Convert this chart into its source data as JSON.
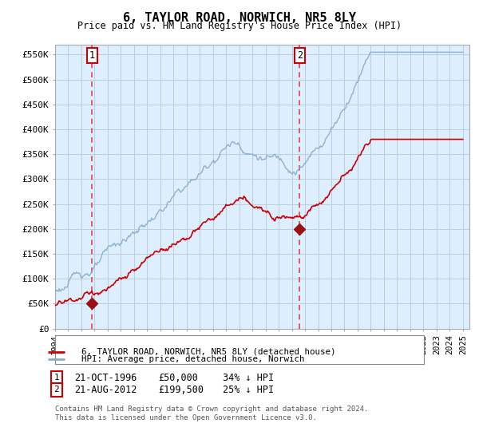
{
  "title": "6, TAYLOR ROAD, NORWICH, NR5 8LY",
  "subtitle": "Price paid vs. HM Land Registry's House Price Index (HPI)",
  "ylim": [
    0,
    570000
  ],
  "yticks": [
    0,
    50000,
    100000,
    150000,
    200000,
    250000,
    300000,
    350000,
    400000,
    450000,
    500000,
    550000
  ],
  "ytick_labels": [
    "£0",
    "£50K",
    "£100K",
    "£150K",
    "£200K",
    "£250K",
    "£300K",
    "£350K",
    "£400K",
    "£450K",
    "£500K",
    "£550K"
  ],
  "xlim_start": 1994.0,
  "xlim_end": 2025.5,
  "sale1_x": 1996.8,
  "sale1_y": 50000,
  "sale2_x": 2012.6,
  "sale2_y": 199500,
  "sale_color": "#cc0000",
  "hpi_color": "#88aacc",
  "vline_color": "#dd4444",
  "marker_color": "#991111",
  "bg_color": "#ddeeff",
  "grid_color": "#bbccdd",
  "legend_entry1": "6, TAYLOR ROAD, NORWICH, NR5 8LY (detached house)",
  "legend_entry2": "HPI: Average price, detached house, Norwich",
  "annotation1_date": "21-OCT-1996",
  "annotation1_price": "£50,000",
  "annotation1_hpi": "34% ↓ HPI",
  "annotation2_date": "21-AUG-2012",
  "annotation2_price": "£199,500",
  "annotation2_hpi": "25% ↓ HPI",
  "footer": "Contains HM Land Registry data © Crown copyright and database right 2024.\nThis data is licensed under the Open Government Licence v3.0."
}
